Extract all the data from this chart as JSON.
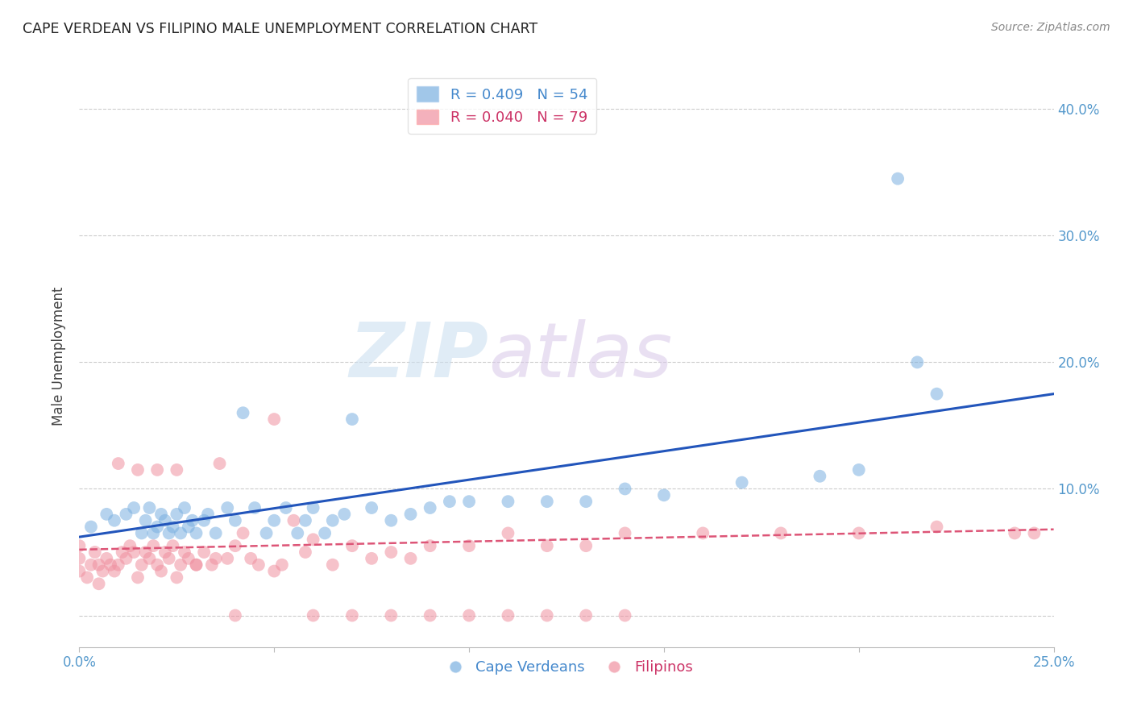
{
  "title": "CAPE VERDEAN VS FILIPINO MALE UNEMPLOYMENT CORRELATION CHART",
  "source": "Source: ZipAtlas.com",
  "ylabel": "Male Unemployment",
  "x_min": 0.0,
  "x_max": 0.25,
  "y_min": -0.025,
  "y_max": 0.435,
  "x_ticks": [
    0.0,
    0.05,
    0.1,
    0.15,
    0.2,
    0.25
  ],
  "x_tick_labels": [
    "0.0%",
    "",
    "",
    "",
    "",
    "25.0%"
  ],
  "y_ticks": [
    0.0,
    0.1,
    0.2,
    0.3,
    0.4
  ],
  "y_tick_labels_right": [
    "",
    "10.0%",
    "20.0%",
    "30.0%",
    "40.0%"
  ],
  "grid_color": "#cccccc",
  "background_color": "#ffffff",
  "watermark_zip": "ZIP",
  "watermark_atlas": "atlas",
  "cape_verdean_color": "#7ab0e0",
  "filipino_color": "#f090a0",
  "cape_verdean_R": 0.409,
  "cape_verdean_N": 54,
  "filipino_R": 0.04,
  "filipino_N": 79,
  "legend_blue_label": "R = 0.409   N = 54",
  "legend_pink_label": "R = 0.040   N = 79",
  "cape_verdean_x": [
    0.003,
    0.007,
    0.009,
    0.012,
    0.014,
    0.016,
    0.017,
    0.018,
    0.019,
    0.02,
    0.021,
    0.022,
    0.023,
    0.024,
    0.025,
    0.026,
    0.027,
    0.028,
    0.029,
    0.03,
    0.032,
    0.033,
    0.035,
    0.038,
    0.04,
    0.042,
    0.045,
    0.048,
    0.05,
    0.053,
    0.056,
    0.058,
    0.06,
    0.063,
    0.065,
    0.068,
    0.07,
    0.075,
    0.08,
    0.085,
    0.09,
    0.095,
    0.1,
    0.11,
    0.12,
    0.13,
    0.14,
    0.15,
    0.17,
    0.19,
    0.2,
    0.21,
    0.215,
    0.22
  ],
  "cape_verdean_y": [
    0.07,
    0.08,
    0.075,
    0.08,
    0.085,
    0.065,
    0.075,
    0.085,
    0.065,
    0.07,
    0.08,
    0.075,
    0.065,
    0.07,
    0.08,
    0.065,
    0.085,
    0.07,
    0.075,
    0.065,
    0.075,
    0.08,
    0.065,
    0.085,
    0.075,
    0.16,
    0.085,
    0.065,
    0.075,
    0.085,
    0.065,
    0.075,
    0.085,
    0.065,
    0.075,
    0.08,
    0.155,
    0.085,
    0.075,
    0.08,
    0.085,
    0.09,
    0.09,
    0.09,
    0.09,
    0.09,
    0.1,
    0.095,
    0.105,
    0.11,
    0.115,
    0.345,
    0.2,
    0.175
  ],
  "filipino_x": [
    0.0,
    0.0,
    0.0,
    0.002,
    0.003,
    0.004,
    0.005,
    0.005,
    0.006,
    0.007,
    0.008,
    0.009,
    0.01,
    0.011,
    0.012,
    0.013,
    0.014,
    0.015,
    0.016,
    0.017,
    0.018,
    0.019,
    0.02,
    0.021,
    0.022,
    0.023,
    0.024,
    0.025,
    0.026,
    0.027,
    0.028,
    0.03,
    0.032,
    0.034,
    0.036,
    0.038,
    0.04,
    0.042,
    0.044,
    0.046,
    0.05,
    0.052,
    0.055,
    0.058,
    0.06,
    0.065,
    0.07,
    0.075,
    0.08,
    0.085,
    0.09,
    0.1,
    0.11,
    0.12,
    0.13,
    0.14,
    0.16,
    0.18,
    0.2,
    0.22,
    0.24,
    0.245,
    0.01,
    0.015,
    0.02,
    0.025,
    0.03,
    0.035,
    0.04,
    0.05,
    0.06,
    0.07,
    0.08,
    0.09,
    0.1,
    0.11,
    0.12,
    0.13,
    0.14
  ],
  "filipino_y": [
    0.035,
    0.045,
    0.055,
    0.03,
    0.04,
    0.05,
    0.025,
    0.04,
    0.035,
    0.045,
    0.04,
    0.035,
    0.04,
    0.05,
    0.045,
    0.055,
    0.05,
    0.03,
    0.04,
    0.05,
    0.045,
    0.055,
    0.04,
    0.035,
    0.05,
    0.045,
    0.055,
    0.03,
    0.04,
    0.05,
    0.045,
    0.04,
    0.05,
    0.04,
    0.12,
    0.045,
    0.055,
    0.065,
    0.045,
    0.04,
    0.035,
    0.04,
    0.075,
    0.05,
    0.06,
    0.04,
    0.055,
    0.045,
    0.05,
    0.045,
    0.055,
    0.055,
    0.065,
    0.055,
    0.055,
    0.065,
    0.065,
    0.065,
    0.065,
    0.07,
    0.065,
    0.065,
    0.12,
    0.115,
    0.115,
    0.115,
    0.04,
    0.045,
    0.0,
    0.155,
    0.0,
    0.0,
    0.0,
    0.0,
    0.0,
    0.0,
    0.0,
    0.0,
    0.0
  ],
  "cv_trend_y_start": 0.062,
  "cv_trend_y_end": 0.175,
  "fil_trend_y_start": 0.052,
  "fil_trend_y_end": 0.068
}
